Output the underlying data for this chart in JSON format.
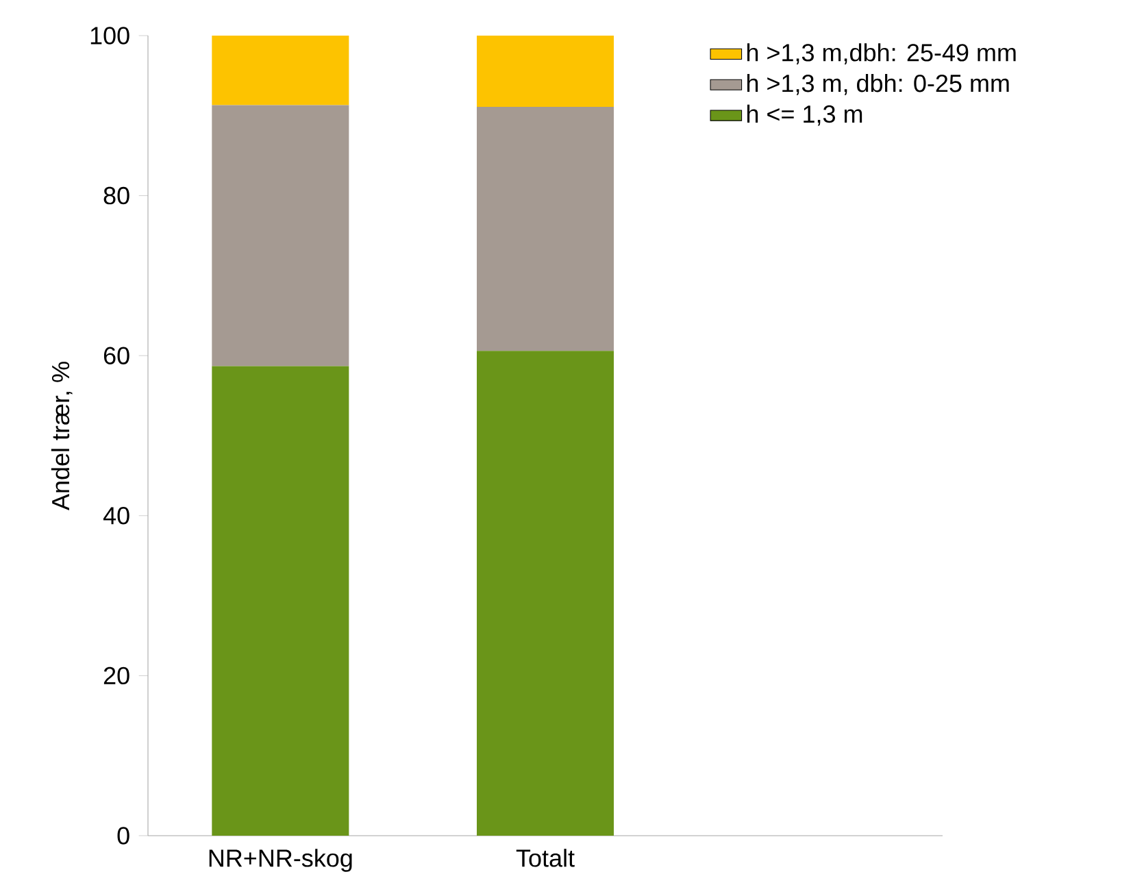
{
  "chart_data": {
    "type": "bar",
    "stacked": true,
    "ylabel": "Andel trær, %",
    "categories": [
      "NR+NR-skog",
      "Totalt"
    ],
    "series": [
      {
        "name": "h <= 1,3 m",
        "color": "#6a9519",
        "values": [
          58.7,
          60.6
        ]
      },
      {
        "name": "h >1,3 m, dbh: 0-25 mm",
        "color": "#a59a92",
        "values": [
          32.6,
          30.5
        ]
      },
      {
        "name": "h >1,3 m,dbh: 25-49 mm",
        "color": "#fdc300",
        "values": [
          8.7,
          8.9
        ]
      }
    ],
    "ylim": [
      0,
      100
    ],
    "yticks": [
      0,
      20,
      40,
      60,
      80,
      100
    ],
    "grid": false,
    "legend": "top right"
  }
}
